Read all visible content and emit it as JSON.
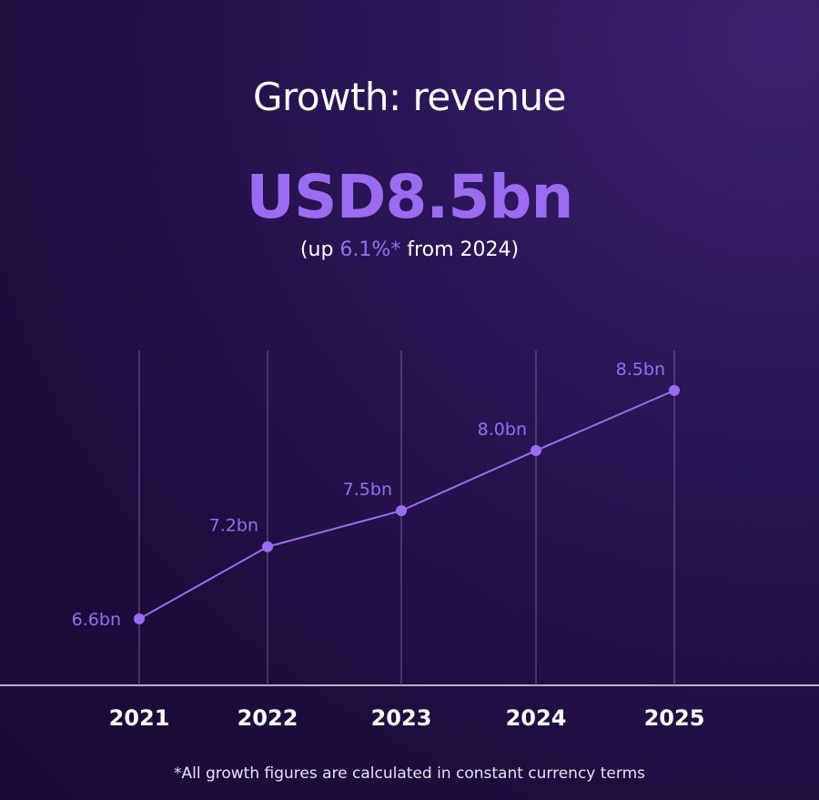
{
  "title": "Growth: revenue",
  "headline": "USD8.5bn",
  "subtitle": {
    "prefix": "(up ",
    "highlight": "6.1%*",
    "suffix": " from 2024)"
  },
  "footnote": "*All growth figures are calculated in constant currency terms",
  "colors": {
    "accent": "#9b6cf2",
    "text": "#ffffff",
    "background": "#241248"
  },
  "chart_data": {
    "type": "line",
    "categories": [
      "2021",
      "2022",
      "2023",
      "2024",
      "2025"
    ],
    "series": [
      {
        "values": [
          6.6,
          7.2,
          7.5,
          8.0,
          8.5
        ]
      }
    ],
    "data_labels": [
      "6.6bn",
      "7.2bn",
      "7.5bn",
      "8.0bn",
      "8.5bn"
    ],
    "unit": "USD bn",
    "grid": "vertical",
    "y_axis_visible": false
  }
}
